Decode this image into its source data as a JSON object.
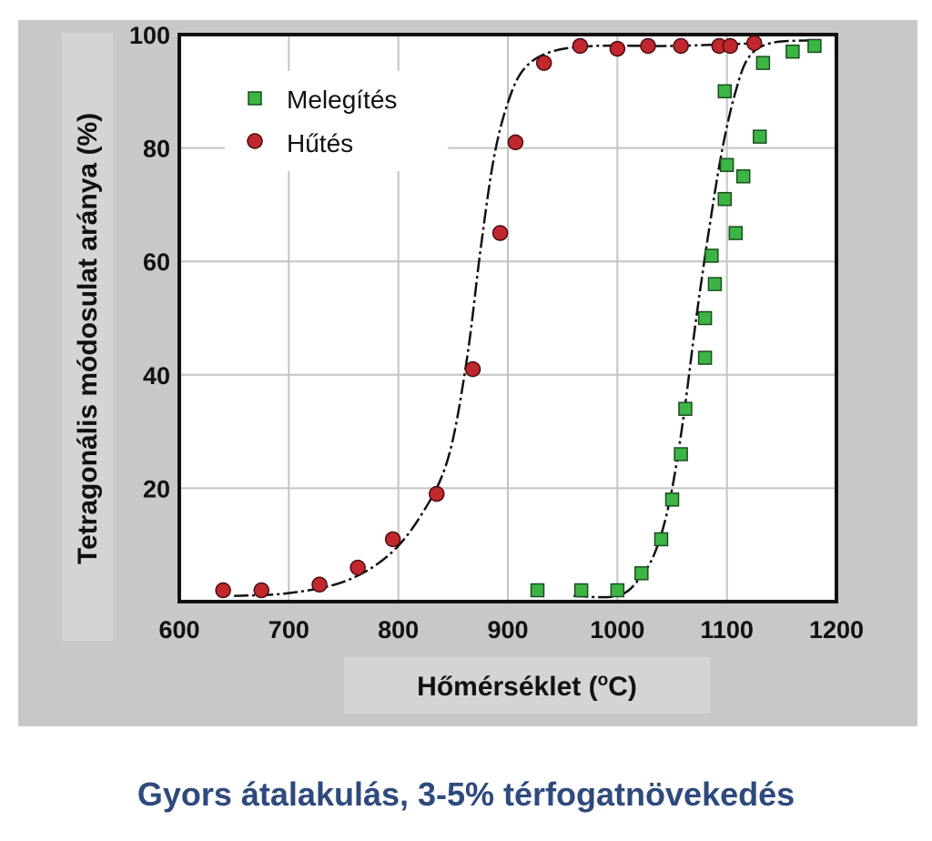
{
  "chart_data": {
    "type": "scatter",
    "xlabel_main": "Hőmérséklet (",
    "xlabel_sup": "o",
    "xlabel_end": "C)",
    "ylabel": "Tetragonális módosulat aránya (%)",
    "xlim": [
      600,
      1200
    ],
    "ylim": [
      0,
      100
    ],
    "x_ticks": [
      600,
      700,
      800,
      900,
      1000,
      1100,
      1200
    ],
    "y_ticks": [
      20,
      40,
      60,
      80,
      100
    ],
    "grid": true,
    "legend_position": "top-left",
    "series": [
      {
        "name": "Melegítés",
        "marker": "square",
        "color": "#3cb544",
        "points": [
          [
            927,
            2
          ],
          [
            967,
            2
          ],
          [
            1000,
            2
          ],
          [
            1022,
            5
          ],
          [
            1040,
            11
          ],
          [
            1050,
            18
          ],
          [
            1058,
            26
          ],
          [
            1062,
            34
          ],
          [
            1080,
            43
          ],
          [
            1080,
            50
          ],
          [
            1089,
            56
          ],
          [
            1086,
            61
          ],
          [
            1098,
            71
          ],
          [
            1108,
            65
          ],
          [
            1100,
            77
          ],
          [
            1115,
            75
          ],
          [
            1098,
            90
          ],
          [
            1130,
            82
          ],
          [
            1133,
            95
          ],
          [
            1160,
            97
          ],
          [
            1180,
            98
          ]
        ],
        "fit_curve": [
          [
            960,
            1
          ],
          [
            1000,
            1
          ],
          [
            1020,
            4
          ],
          [
            1035,
            9
          ],
          [
            1048,
            18
          ],
          [
            1060,
            32
          ],
          [
            1072,
            50
          ],
          [
            1084,
            66
          ],
          [
            1096,
            80
          ],
          [
            1108,
            90
          ],
          [
            1120,
            96
          ],
          [
            1140,
            98.5
          ],
          [
            1180,
            99
          ]
        ]
      },
      {
        "name": "Hűtés",
        "marker": "circle",
        "color": "#c0282e",
        "points": [
          [
            640,
            2
          ],
          [
            675,
            2
          ],
          [
            728,
            3
          ],
          [
            763,
            6
          ],
          [
            795,
            11
          ],
          [
            835,
            19
          ],
          [
            868,
            41
          ],
          [
            893,
            65
          ],
          [
            907,
            81
          ],
          [
            933,
            95
          ],
          [
            966,
            98
          ],
          [
            1000,
            97.5
          ],
          [
            1028,
            98
          ],
          [
            1058,
            98
          ],
          [
            1093,
            98
          ],
          [
            1103,
            98
          ],
          [
            1125,
            98.5
          ]
        ],
        "fit_curve": [
          [
            650,
            1
          ],
          [
            700,
            1.5
          ],
          [
            750,
            3.5
          ],
          [
            790,
            8
          ],
          [
            820,
            15
          ],
          [
            845,
            25
          ],
          [
            862,
            42
          ],
          [
            875,
            62
          ],
          [
            887,
            78
          ],
          [
            900,
            88
          ],
          [
            915,
            94
          ],
          [
            940,
            97
          ],
          [
            980,
            98
          ],
          [
            1050,
            98
          ],
          [
            1130,
            98.5
          ]
        ]
      }
    ]
  },
  "caption": "Gyors átalakulás, 3-5% térfogatnövekedés"
}
